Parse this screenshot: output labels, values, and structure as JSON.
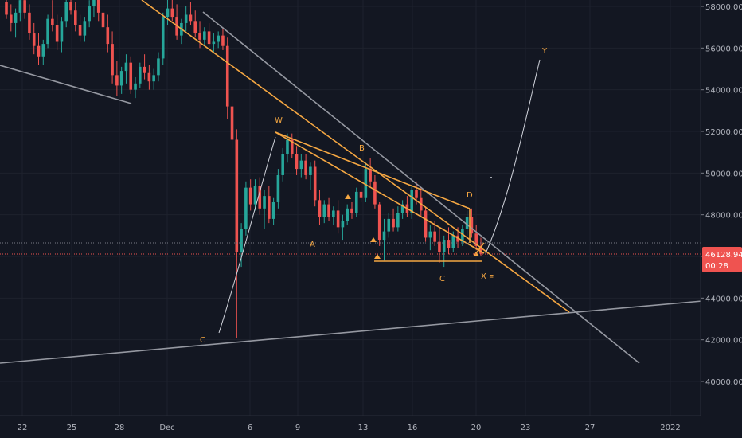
{
  "chart_data": {
    "type": "candlestick",
    "title": "",
    "xlabel": "",
    "ylabel": "",
    "ylim": [
      39000,
      59000
    ],
    "y_ticks": [
      "58000.00",
      "56000.00",
      "54000.00",
      "52000.00",
      "50000.00",
      "48000.00",
      "46000.00",
      "44000.00",
      "42000.00",
      "40000.00"
    ],
    "x_ticks": [
      "22",
      "25",
      "28",
      "Dec",
      "6",
      "9",
      "13",
      "16",
      "20",
      "23",
      "27",
      "2022"
    ],
    "last_price": "46128.94",
    "countdown": "00:28",
    "grid": true,
    "colors": {
      "background": "#131722",
      "grid": "#1e222d",
      "up": "#26a69a",
      "down": "#ef5350",
      "trendline_orange": "#f5a742",
      "trendline_gray": "#9598a1",
      "price_tag": "#ef5350"
    },
    "candles": [
      [
        58200,
        58900,
        57400,
        57600
      ],
      [
        57600,
        58100,
        56800,
        57200
      ],
      [
        57200,
        57900,
        56500,
        57700
      ],
      [
        57700,
        58700,
        57300,
        58300
      ],
      [
        58300,
        58800,
        57400,
        57700
      ],
      [
        57700,
        58100,
        56400,
        56700
      ],
      [
        56700,
        57200,
        55700,
        56100
      ],
      [
        56100,
        56700,
        55200,
        55600
      ],
      [
        55600,
        56400,
        55200,
        56200
      ],
      [
        56200,
        57600,
        56000,
        57400
      ],
      [
        57400,
        58300,
        56800,
        57100
      ],
      [
        57100,
        57600,
        55900,
        56300
      ],
      [
        56300,
        57500,
        55800,
        57300
      ],
      [
        57300,
        58400,
        57000,
        58200
      ],
      [
        58200,
        58900,
        57600,
        57800
      ],
      [
        57800,
        58200,
        56800,
        57100
      ],
      [
        57100,
        57600,
        56300,
        56600
      ],
      [
        56600,
        57500,
        56300,
        57300
      ],
      [
        57300,
        58300,
        57000,
        58000
      ],
      [
        58000,
        58900,
        57500,
        58500
      ],
      [
        58500,
        58900,
        57300,
        57700
      ],
      [
        57700,
        58200,
        56700,
        57000
      ],
      [
        57000,
        57600,
        55800,
        56200
      ],
      [
        56200,
        56800,
        54300,
        54700
      ],
      [
        54700,
        55400,
        53700,
        54200
      ],
      [
        54200,
        55100,
        53800,
        54900
      ],
      [
        54900,
        55700,
        54300,
        55300
      ],
      [
        55300,
        55600,
        53800,
        54000
      ],
      [
        54000,
        54600,
        53600,
        54300
      ],
      [
        54300,
        55300,
        54100,
        55100
      ],
      [
        55100,
        55700,
        54500,
        54800
      ],
      [
        54800,
        55200,
        54000,
        54400
      ],
      [
        54400,
        55000,
        54000,
        54700
      ],
      [
        54700,
        55800,
        54400,
        55500
      ],
      [
        55500,
        57700,
        55200,
        57500
      ],
      [
        57500,
        58400,
        57100,
        57900
      ],
      [
        57900,
        58700,
        57300,
        57500
      ],
      [
        57500,
        58100,
        56400,
        56600
      ],
      [
        56600,
        57400,
        56200,
        57200
      ],
      [
        57200,
        58000,
        56800,
        57600
      ],
      [
        57600,
        58200,
        57100,
        57300
      ],
      [
        57300,
        57800,
        56500,
        56700
      ],
      [
        56700,
        57300,
        56000,
        56400
      ],
      [
        56400,
        57000,
        56100,
        56800
      ],
      [
        56800,
        57200,
        56000,
        56200
      ],
      [
        56200,
        56700,
        55800,
        56300
      ],
      [
        56300,
        56800,
        56000,
        56600
      ],
      [
        56600,
        57000,
        55900,
        56100
      ],
      [
        56100,
        56500,
        52600,
        53200
      ],
      [
        53200,
        53500,
        51200,
        51600
      ],
      [
        51600,
        52100,
        42100,
        46200
      ],
      [
        46200,
        47600,
        45500,
        47300
      ],
      [
        47300,
        49600,
        47000,
        49300
      ],
      [
        49300,
        49700,
        48200,
        48500
      ],
      [
        48500,
        49700,
        48200,
        49400
      ],
      [
        49400,
        49800,
        48000,
        48300
      ],
      [
        48300,
        49200,
        47300,
        48900
      ],
      [
        48900,
        49400,
        47600,
        47800
      ],
      [
        47800,
        48800,
        47500,
        48600
      ],
      [
        48600,
        50200,
        48300,
        49900
      ],
      [
        49900,
        51200,
        49600,
        50900
      ],
      [
        50900,
        51900,
        50500,
        51600
      ],
      [
        51600,
        51900,
        50700,
        50900
      ],
      [
        50900,
        51300,
        49900,
        50200
      ],
      [
        50200,
        50900,
        49800,
        50600
      ],
      [
        50600,
        50900,
        49700,
        49900
      ],
      [
        49900,
        50500,
        49200,
        50300
      ],
      [
        50300,
        50600,
        48400,
        48700
      ],
      [
        48700,
        49200,
        47500,
        47900
      ],
      [
        47900,
        48700,
        47600,
        48500
      ],
      [
        48500,
        48800,
        47700,
        47900
      ],
      [
        47900,
        48400,
        47500,
        48200
      ],
      [
        48200,
        48700,
        47100,
        47400
      ],
      [
        47400,
        48000,
        46800,
        47700
      ],
      [
        47700,
        48500,
        47500,
        48300
      ],
      [
        48300,
        48600,
        47800,
        48100
      ],
      [
        48100,
        49300,
        47900,
        49100
      ],
      [
        49100,
        49500,
        48600,
        48800
      ],
      [
        48800,
        50500,
        48600,
        50200
      ],
      [
        50200,
        50700,
        49300,
        49600
      ],
      [
        49600,
        49900,
        48300,
        48500
      ],
      [
        48500,
        48600,
        46500,
        46800
      ],
      [
        46800,
        47800,
        45800,
        47200
      ],
      [
        47200,
        48100,
        46900,
        47800
      ],
      [
        47800,
        48300,
        47200,
        47400
      ],
      [
        47400,
        48400,
        47200,
        48100
      ],
      [
        48100,
        48700,
        47800,
        48500
      ],
      [
        48500,
        48900,
        47900,
        48100
      ],
      [
        48100,
        49400,
        47800,
        49200
      ],
      [
        49200,
        49600,
        48500,
        48800
      ],
      [
        48800,
        49300,
        47900,
        48200
      ],
      [
        48200,
        48400,
        46700,
        46900
      ],
      [
        46900,
        47500,
        46300,
        47200
      ],
      [
        47200,
        47700,
        46500,
        46700
      ],
      [
        46700,
        47300,
        45700,
        46200
      ],
      [
        46200,
        47000,
        45500,
        46800
      ],
      [
        46800,
        47400,
        46100,
        46400
      ],
      [
        46400,
        47200,
        46200,
        47000
      ],
      [
        47000,
        47400,
        46400,
        46700
      ],
      [
        46700,
        47500,
        46500,
        47300
      ],
      [
        47300,
        48200,
        47000,
        47900
      ],
      [
        47900,
        48300,
        46900,
        47100
      ],
      [
        47100,
        47500,
        46300,
        46500
      ],
      [
        46500,
        46900,
        46000,
        46129
      ]
    ],
    "wave_labels": [
      "C",
      "W",
      "A",
      "B",
      "C",
      "D",
      "X",
      "E",
      "Y"
    ]
  }
}
